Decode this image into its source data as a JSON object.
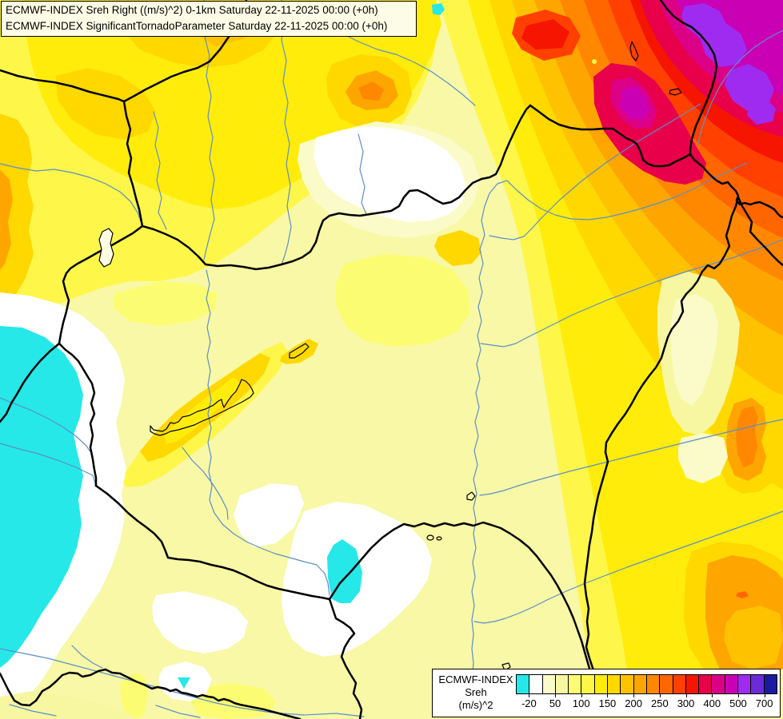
{
  "header": {
    "line1": "ECMWF-INDEX Sreh Right ((m/s)^2) 0-1km Saturday 22-11-2025 00:00 (+0h)",
    "line2": "ECMWF-INDEX SignificantTornadoParameter Saturday 22-11-2025 00:00 (+0h)"
  },
  "legend": {
    "title_line1": "ECMWF-INDEX",
    "title_line2": "Sreh",
    "title_line3": "(m/s)^2",
    "colors": [
      "#26E8E8",
      "#FFFFFF",
      "#FBFBC9",
      "#F7F7A1",
      "#FCFC72",
      "#FFF64A",
      "#FFEC0A",
      "#FFD800",
      "#FFC200",
      "#FFA500",
      "#FF8800",
      "#FF6600",
      "#FF4000",
      "#F51500",
      "#E8004A",
      "#DC0087",
      "#CA00B4",
      "#A02BF0",
      "#6B2BD8",
      "#1A1A9C"
    ],
    "ticks": [
      "-20",
      "50",
      "100",
      "150",
      "200",
      "250",
      "300",
      "400",
      "500",
      "700"
    ]
  },
  "map": {
    "border_color": "#000000",
    "river_color": "#5B8FC9",
    "lake_outline_color": "#000000",
    "background_color": "#F8F8A6"
  },
  "chart_data": {
    "type": "heatmap",
    "title": "ECMWF-INDEX Sreh Right ((m/s)^2) 0-1km",
    "subtitle": "ECMWF-INDEX SignificantTornadoParameter",
    "valid_time": "Saturday 22-11-2025 00:00 (+0h)",
    "units": "(m/s)^2",
    "scale_ticks": [
      -20,
      50,
      100,
      150,
      200,
      250,
      300,
      400,
      500,
      700
    ],
    "palette": [
      "#26E8E8",
      "#FFFFFF",
      "#FBFBC9",
      "#F7F7A1",
      "#FCFC72",
      "#FFF64A",
      "#FFEC0A",
      "#FFD800",
      "#FFC200",
      "#FFA500",
      "#FF8800",
      "#FF6600",
      "#FF4000",
      "#F51500",
      "#E8004A",
      "#DC0087",
      "#CA00B4",
      "#A02BF0",
      "#6B2BD8",
      "#1A1A9C"
    ],
    "legend_position": "bottom-right",
    "description": "Storm-relative helicity field over Hungary and surrounding countries; maximum (300-700+) over NE Carpathians, minima (below -20, cyan) over eastern Austria/Slovenia and south-central Hungary"
  }
}
